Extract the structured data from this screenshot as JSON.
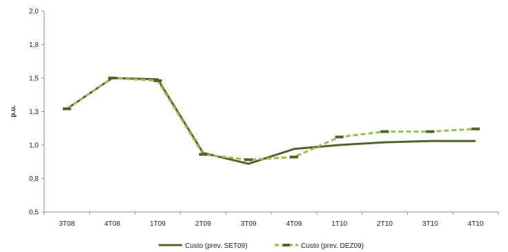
{
  "chart_data": {
    "type": "line",
    "title": "",
    "xlabel": "",
    "ylabel": "p.u.",
    "categories": [
      "3T08",
      "4T08",
      "1T09",
      "2T09",
      "3T09",
      "4T09",
      "1T10",
      "2T10",
      "3T10",
      "4T10"
    ],
    "y_tick_labels": [
      "0,5",
      "0,8",
      "1,0",
      "1,3",
      "1,5",
      "1,8",
      "2,0"
    ],
    "ylim": [
      0.5,
      2.0
    ],
    "grid": false,
    "legend_position": "bottom",
    "series": [
      {
        "name": "Custo (prev. SET09)",
        "values": [
          1.27,
          1.5,
          1.49,
          0.94,
          0.86,
          0.97,
          1.0,
          1.02,
          1.03,
          1.03
        ],
        "color": "#4f6228",
        "style": "solid"
      },
      {
        "name": "Custo (prev. DEZ09)",
        "values": [
          1.27,
          1.5,
          1.48,
          0.93,
          0.89,
          0.91,
          1.06,
          1.1,
          1.1,
          1.12
        ],
        "color": "#9bbb59",
        "style": "dashed"
      }
    ]
  }
}
